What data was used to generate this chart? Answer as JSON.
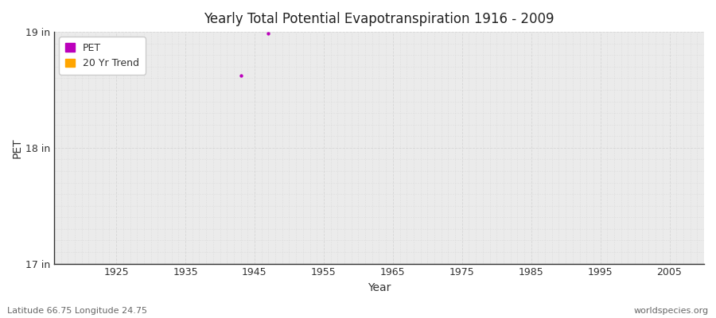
{
  "title": "Yearly Total Potential Evapotranspiration 1916 - 2009",
  "xlabel": "Year",
  "ylabel": "PET",
  "xlim": [
    1916,
    2010
  ],
  "ylim": [
    17,
    19
  ],
  "yticks": [
    17,
    18,
    19
  ],
  "ytick_labels": [
    "17 in",
    "18 in",
    "19 in"
  ],
  "xticks": [
    1925,
    1935,
    1945,
    1955,
    1965,
    1975,
    1985,
    1995,
    2005
  ],
  "pet_color": "#bb00bb",
  "trend_color": "#ffa500",
  "background_color": "#ffffff",
  "plot_bg_color": "#ebebeb",
  "grid_color": "#d4d4d4",
  "pet_points_x": [
    1943,
    1947
  ],
  "pet_points_y": [
    18.62,
    18.99
  ],
  "subtitle_left": "Latitude 66.75 Longitude 24.75",
  "subtitle_right": "worldspecies.org",
  "legend_labels": [
    "PET",
    "20 Yr Trend"
  ],
  "figsize": [
    9.0,
    4.0
  ],
  "dpi": 100
}
